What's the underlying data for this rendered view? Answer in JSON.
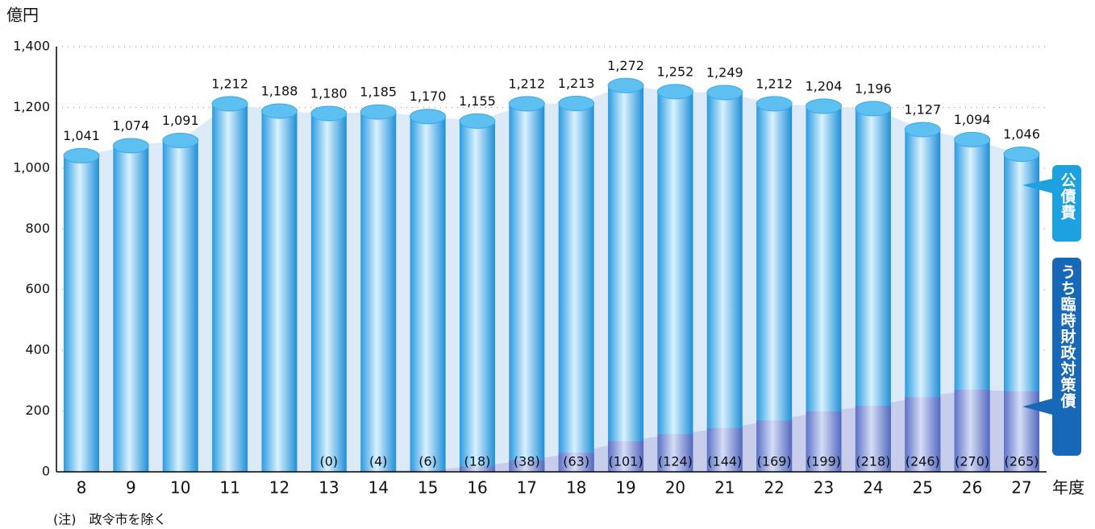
{
  "chart_data": {
    "type": "bar",
    "y_unit": "億円",
    "x_unit": "年度",
    "note": "(注)　政令市を除く",
    "categories": [
      "8",
      "9",
      "10",
      "11",
      "12",
      "13",
      "14",
      "15",
      "16",
      "17",
      "18",
      "19",
      "20",
      "21",
      "22",
      "23",
      "24",
      "25",
      "26",
      "27"
    ],
    "series": [
      {
        "name": "公債費",
        "color": "#3aa8e8",
        "values": [
          1041,
          1074,
          1091,
          1212,
          1188,
          1180,
          1185,
          1170,
          1155,
          1212,
          1213,
          1272,
          1252,
          1249,
          1212,
          1204,
          1196,
          1127,
          1094,
          1046
        ],
        "value_labels": [
          "1,041",
          "1,074",
          "1,091",
          "1,212",
          "1,188",
          "1,180",
          "1,185",
          "1,170",
          "1,155",
          "1,212",
          "1,213",
          "1,272",
          "1,252",
          "1,249",
          "1,212",
          "1,204",
          "1,196",
          "1,127",
          "1,094",
          "1,046"
        ]
      },
      {
        "name": "うち臨時財政対策債",
        "color": "#7f92d8",
        "values": [
          null,
          null,
          null,
          null,
          null,
          0,
          4,
          6,
          18,
          38,
          63,
          101,
          124,
          144,
          169,
          199,
          218,
          246,
          270,
          265
        ],
        "value_labels": [
          null,
          null,
          null,
          null,
          null,
          "(0)",
          "(4)",
          "(6)",
          "(18)",
          "(38)",
          "(63)",
          "(101)",
          "(124)",
          "(144)",
          "(169)",
          "(199)",
          "(218)",
          "(246)",
          "(270)",
          "(265)"
        ]
      }
    ],
    "ylim": [
      0,
      1400
    ],
    "yticks": [
      0,
      200,
      400,
      600,
      800,
      {
        "value": 1000,
        "label": "1,000"
      },
      {
        "value": 1200,
        "label": "1,200"
      },
      {
        "value": 1400,
        "label": "1,400"
      }
    ],
    "grid": true
  }
}
